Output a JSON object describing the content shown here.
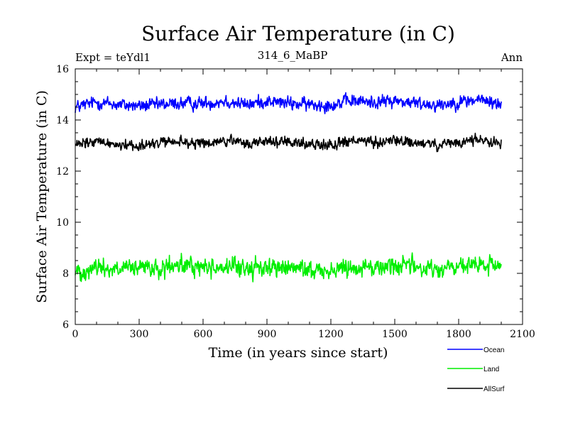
{
  "chart_data": {
    "type": "line",
    "title": "Surface Air Temperature (in C)",
    "subtitle_left": "Expt = teYdl1",
    "subtitle_center": "314_6_MaBP",
    "subtitle_right": "Ann",
    "xlabel": "Time (in years since start)",
    "ylabel": "Surface Air Temperature (in C)",
    "xlim": [
      0,
      2100
    ],
    "ylim": [
      6,
      16
    ],
    "x_ticks": [
      0,
      300,
      600,
      900,
      1200,
      1500,
      1800,
      2100
    ],
    "x_tick_labels": [
      "0",
      "300",
      "600",
      "900",
      "1200",
      "1500",
      "1800",
      "2100"
    ],
    "y_ticks": [
      6,
      8,
      10,
      12,
      14,
      16
    ],
    "y_tick_labels": [
      "6",
      "8",
      "10",
      "12",
      "14",
      "16"
    ],
    "x_range_data": [
      0,
      2000
    ],
    "series": [
      {
        "name": "Ocean",
        "color": "#0000ff",
        "mean": 14.65,
        "noise": 0.12,
        "anchors": [
          [
            0,
            14.5
          ],
          [
            100,
            14.7
          ],
          [
            200,
            14.6
          ],
          [
            300,
            14.55
          ],
          [
            400,
            14.6
          ],
          [
            500,
            14.65
          ],
          [
            600,
            14.65
          ],
          [
            700,
            14.75
          ],
          [
            800,
            14.6
          ],
          [
            900,
            14.75
          ],
          [
            1000,
            14.65
          ],
          [
            1100,
            14.6
          ],
          [
            1200,
            14.6
          ],
          [
            1300,
            14.75
          ],
          [
            1400,
            14.7
          ],
          [
            1500,
            14.75
          ],
          [
            1600,
            14.65
          ],
          [
            1700,
            14.6
          ],
          [
            1800,
            14.7
          ],
          [
            1900,
            14.8
          ],
          [
            2000,
            14.6
          ]
        ]
      },
      {
        "name": "Land",
        "color": "#00ee00",
        "mean": 8.2,
        "noise": 0.17,
        "anchors": [
          [
            0,
            8.05
          ],
          [
            100,
            8.25
          ],
          [
            200,
            8.15
          ],
          [
            300,
            8.2
          ],
          [
            400,
            8.15
          ],
          [
            500,
            8.3
          ],
          [
            600,
            8.25
          ],
          [
            700,
            8.25
          ],
          [
            800,
            8.2
          ],
          [
            900,
            8.25
          ],
          [
            1000,
            8.2
          ],
          [
            1100,
            8.15
          ],
          [
            1200,
            8.1
          ],
          [
            1300,
            8.3
          ],
          [
            1400,
            8.2
          ],
          [
            1500,
            8.35
          ],
          [
            1600,
            8.25
          ],
          [
            1700,
            8.15
          ],
          [
            1800,
            8.25
          ],
          [
            1900,
            8.3
          ],
          [
            2000,
            8.3
          ]
        ]
      },
      {
        "name": "AllSurf",
        "color": "#000000",
        "mean": 13.1,
        "noise": 0.1,
        "anchors": [
          [
            0,
            13.0
          ],
          [
            100,
            13.15
          ],
          [
            200,
            13.05
          ],
          [
            300,
            13.0
          ],
          [
            400,
            13.1
          ],
          [
            500,
            13.15
          ],
          [
            600,
            13.05
          ],
          [
            700,
            13.2
          ],
          [
            800,
            13.05
          ],
          [
            900,
            13.2
          ],
          [
            1000,
            13.1
          ],
          [
            1100,
            13.05
          ],
          [
            1200,
            13.05
          ],
          [
            1300,
            13.2
          ],
          [
            1400,
            13.1
          ],
          [
            1500,
            13.2
          ],
          [
            1600,
            13.1
          ],
          [
            1700,
            13.0
          ],
          [
            1800,
            13.1
          ],
          [
            1900,
            13.25
          ],
          [
            2000,
            13.1
          ]
        ]
      }
    ],
    "legend": [
      "Ocean",
      "Land",
      "AllSurf"
    ]
  }
}
